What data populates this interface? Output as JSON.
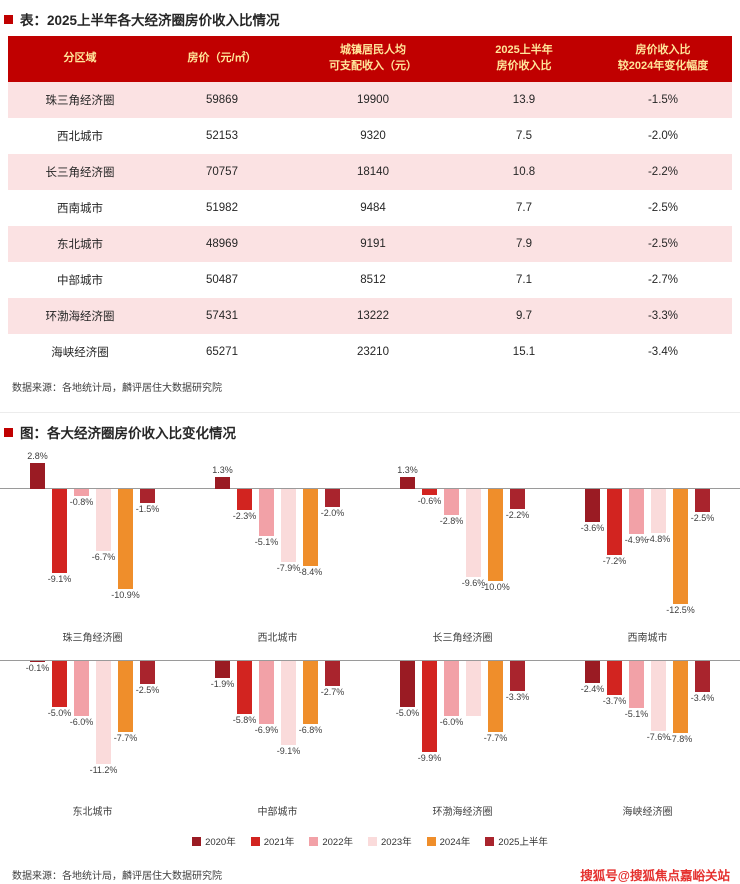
{
  "sections": {
    "table": {
      "title": "表：2025上半年各大经济圈房价收入比情况",
      "source": "数据来源：各地统计局，麟评居住大数据研究院"
    },
    "chart": {
      "title": "图：各大经济圈房价收入比变化情况",
      "source": "数据来源：各地统计局，麟评居住大数据研究院"
    }
  },
  "watermark": "搜狐号@搜狐焦点嘉峪关站",
  "table": {
    "headers": [
      "分区域",
      "房价（元/㎡）",
      "城镇居民人均\n可支配收入（元）",
      "2025上半年\n房价收入比",
      "房价收入比\n较2024年变化幅度"
    ],
    "rows": [
      [
        "珠三角经济圈",
        "59869",
        "19900",
        "13.9",
        "-1.5%"
      ],
      [
        "西北城市",
        "52153",
        "9320",
        "7.5",
        "-2.0%"
      ],
      [
        "长三角经济圈",
        "70757",
        "18140",
        "10.8",
        "-2.2%"
      ],
      [
        "西南城市",
        "51982",
        "9484",
        "7.7",
        "-2.5%"
      ],
      [
        "东北城市",
        "48969",
        "9191",
        "7.9",
        "-2.5%"
      ],
      [
        "中部城市",
        "50487",
        "8512",
        "7.1",
        "-2.7%"
      ],
      [
        "环渤海经济圈",
        "57431",
        "13222",
        "9.7",
        "-3.3%"
      ],
      [
        "海峡经济圈",
        "65271",
        "23210",
        "15.1",
        "-3.4%"
      ]
    ]
  },
  "chart_data": {
    "type": "bar",
    "title": "图：各大经济圈房价收入比变化情况",
    "value_unit": "%",
    "ylim": [
      -13,
      3
    ],
    "legend_position": "bottom",
    "series_names": [
      "2020年",
      "2021年",
      "2022年",
      "2023年",
      "2024年",
      "2025上半年"
    ],
    "series_colors": [
      "#9a1b23",
      "#d22420",
      "#f2a1a7",
      "#fadbdb",
      "#ef8e2b",
      "#a9242d"
    ],
    "groups": [
      {
        "name": "珠三角经济圈",
        "values": [
          2.8,
          -9.1,
          -0.8,
          -6.7,
          -10.9,
          -1.5
        ],
        "labels": [
          "2.8%",
          "-9.1%",
          "-0.8%",
          "-6.7%",
          "-10.9%",
          "-1.5%"
        ]
      },
      {
        "name": "西北城市",
        "values": [
          1.3,
          -2.3,
          -5.1,
          -7.9,
          -8.4,
          -2.0
        ],
        "labels": [
          "1.3%",
          "-2.3%",
          "-5.1%",
          "-7.9%",
          "-8.4%",
          "-2.0%"
        ]
      },
      {
        "name": "长三角经济圈",
        "values": [
          1.3,
          -0.6,
          -2.8,
          -9.6,
          -10.0,
          -2.2
        ],
        "labels": [
          "1.3%",
          "-0.6%",
          "-2.8%",
          "-9.6%",
          "-10.0%",
          "-2.2%"
        ]
      },
      {
        "name": "西南城市",
        "values": [
          -3.6,
          -7.2,
          -4.9,
          -4.8,
          -12.5,
          -2.5
        ],
        "labels": [
          "-3.6%",
          "-7.2%",
          "-4.9%",
          "-4.8%",
          "-12.5%",
          "-2.5%"
        ]
      },
      {
        "name": "东北城市",
        "values": [
          -0.1,
          -5.0,
          -6.0,
          -11.2,
          -7.7,
          -2.5
        ],
        "labels": [
          "-0.1%",
          "-5.0%",
          "-6.0%",
          "-11.2%",
          "-7.7%",
          "-2.5%"
        ]
      },
      {
        "name": "中部城市",
        "values": [
          -1.9,
          -5.8,
          -6.9,
          -9.1,
          -6.8,
          -2.7
        ],
        "labels": [
          "-1.9%",
          "-5.8%",
          "-6.9%",
          "-9.1%",
          "-6.8%",
          "-2.7%"
        ]
      },
      {
        "name": "环渤海经济圈",
        "values": [
          -5.0,
          -9.9,
          -6.0,
          -6.0,
          -7.7,
          -3.3
        ],
        "labels": [
          "-5.0%",
          "-9.9%",
          "-6.0%",
          "",
          "-7.7%",
          "-3.3%"
        ]
      },
      {
        "name": "海峡经济圈",
        "values": [
          -2.4,
          -3.7,
          -5.1,
          -7.6,
          -7.8,
          -3.4
        ],
        "labels": [
          "-2.4%",
          "-3.7%",
          "-5.1%",
          "-7.6%",
          "-7.8%",
          "-3.4%"
        ]
      }
    ]
  },
  "colors": {
    "accent": "#c00000",
    "header_bg": "#c00000",
    "header_text": "#ffe59a",
    "row_alt": "#fbe2e3",
    "zero_line": "#9a9a9a",
    "watermark": "#e5302e"
  }
}
